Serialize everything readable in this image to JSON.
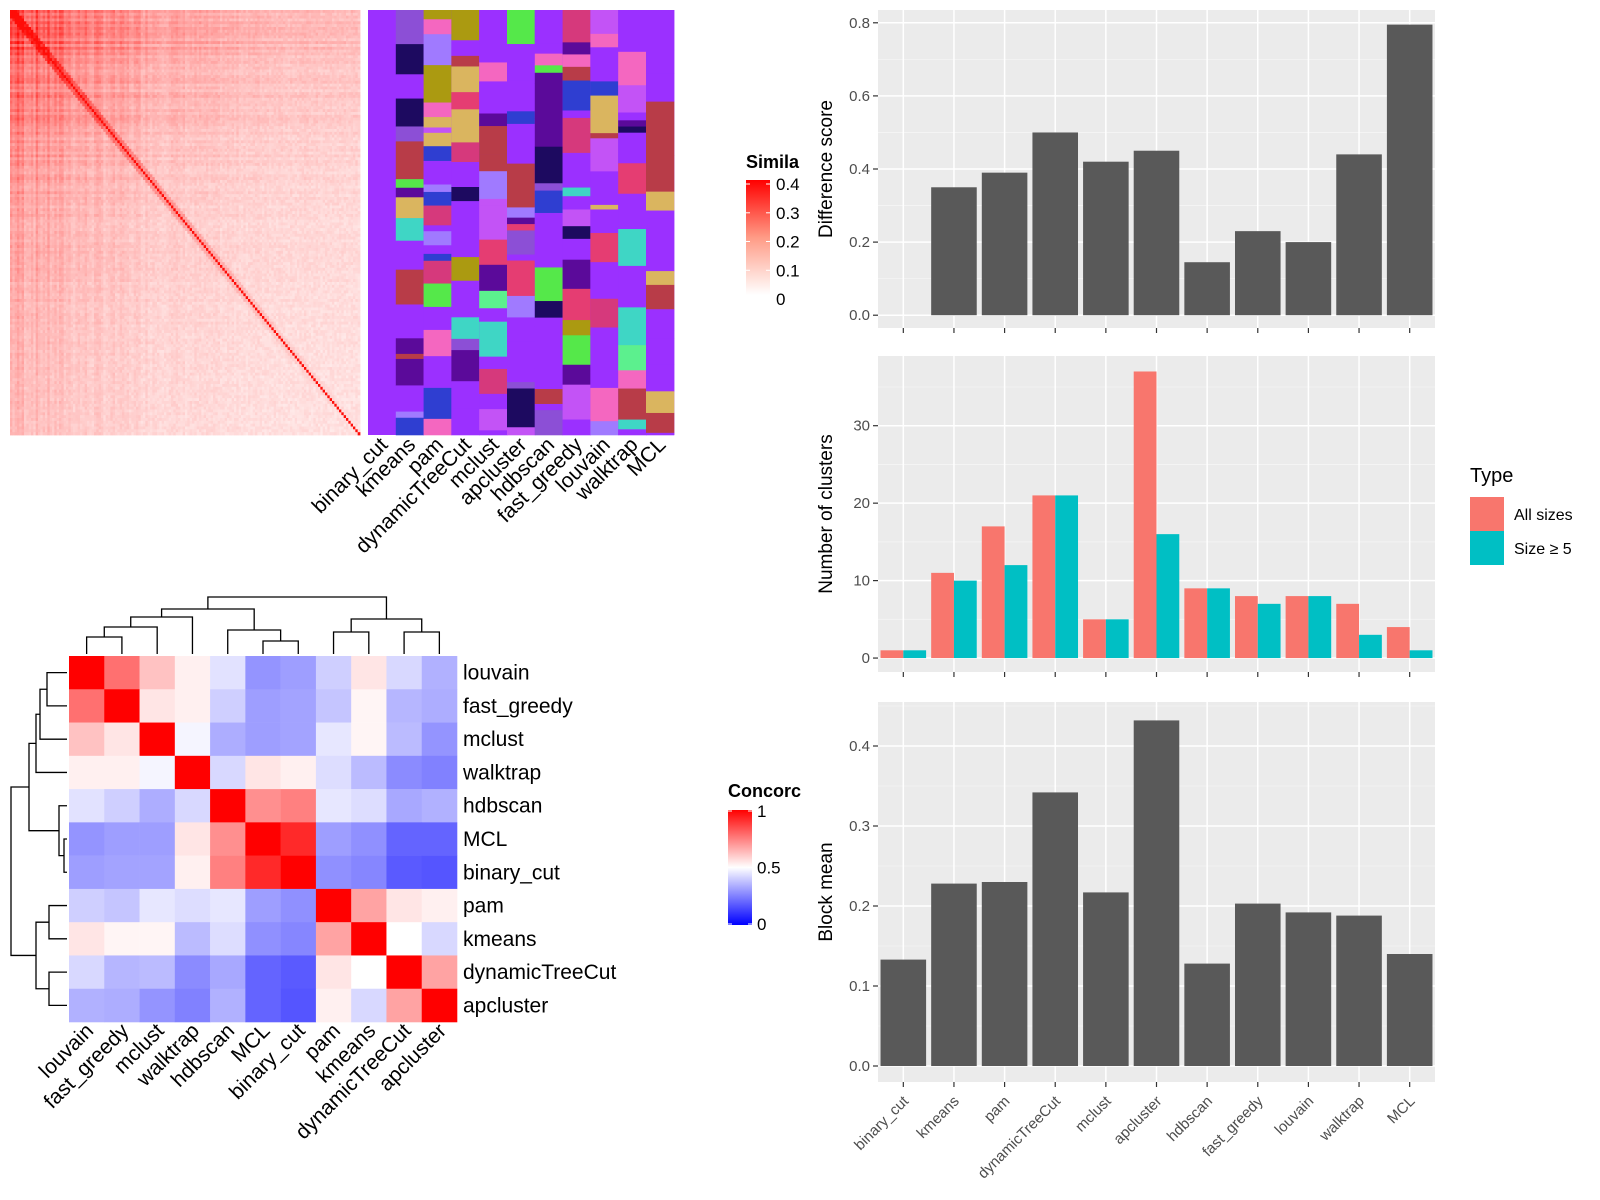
{
  "methods": [
    "binary_cut",
    "kmeans",
    "pam",
    "dynamicTreeCut",
    "mclust",
    "apcluster",
    "hdbscan",
    "fast_greedy",
    "louvain",
    "walktrap",
    "MCL"
  ],
  "colors": {
    "panel_bg": "#ebebeb",
    "bar_gray": "#595959",
    "all_sizes": "#f8766d",
    "size_ge5": "#00bfc4",
    "heat_red": "#ff0000",
    "heat_blue": "#0000ff",
    "partition_purple": "#9b30ff",
    "partition_palette": [
      "#9b30ff",
      "#dab55f",
      "#5cf08e",
      "#b83c48",
      "#e53d72",
      "#5b0a9a",
      "#c353f6",
      "#3fd6c5",
      "#2f3ed1",
      "#f467c0",
      "#ab9a11",
      "#1d0a60",
      "#a07aff",
      "#55e84a",
      "#d6397c",
      "#8c4fd6"
    ]
  },
  "chart_data": [
    {
      "type": "heatmap",
      "name": "similarity",
      "legend_title": "Similarity",
      "legend_title_visible": "Simila",
      "legend_ticks": [
        "0",
        "0.1",
        "0.2",
        "0.3",
        "0.4"
      ],
      "range": [
        0,
        0.4
      ],
      "x_labels": [
        "binary_cut",
        "kmeans",
        "pam",
        "dynamicTreeCut",
        "mclust",
        "apcluster",
        "hdbscan",
        "fast_greedy",
        "louvain",
        "walktrap",
        "MCL"
      ]
    },
    {
      "type": "heatmap",
      "name": "concordance",
      "legend_title": "Concordance",
      "legend_title_visible": "Concorc",
      "legend_ticks": [
        "0",
        "0.5",
        "1"
      ],
      "range": [
        0,
        1
      ],
      "row_labels": [
        "louvain",
        "fast_greedy",
        "mclust",
        "walktrap",
        "hdbscan",
        "MCL",
        "binary_cut",
        "pam",
        "kmeans",
        "dynamicTreeCut",
        "apcluster"
      ],
      "col_labels": [
        "louvain",
        "fast_greedy",
        "mclust",
        "walktrap",
        "hdbscan",
        "MCL",
        "binary_cut",
        "pam",
        "kmeans",
        "dynamicTreeCut",
        "apcluster"
      ],
      "values": [
        [
          1.0,
          0.78,
          0.62,
          0.53,
          0.44,
          0.28,
          0.3,
          0.4,
          0.55,
          0.42,
          0.34
        ],
        [
          0.78,
          1.0,
          0.55,
          0.53,
          0.4,
          0.3,
          0.31,
          0.38,
          0.52,
          0.35,
          0.33
        ],
        [
          0.62,
          0.55,
          1.0,
          0.48,
          0.33,
          0.3,
          0.31,
          0.45,
          0.52,
          0.36,
          0.28
        ],
        [
          0.53,
          0.53,
          0.48,
          1.0,
          0.42,
          0.55,
          0.53,
          0.43,
          0.36,
          0.26,
          0.24
        ],
        [
          0.44,
          0.4,
          0.33,
          0.42,
          1.0,
          0.72,
          0.75,
          0.45,
          0.43,
          0.32,
          0.34
        ],
        [
          0.28,
          0.3,
          0.3,
          0.55,
          0.72,
          1.0,
          0.92,
          0.3,
          0.27,
          0.18,
          0.18
        ],
        [
          0.3,
          0.31,
          0.31,
          0.53,
          0.75,
          0.92,
          1.0,
          0.27,
          0.25,
          0.16,
          0.15
        ],
        [
          0.4,
          0.38,
          0.45,
          0.43,
          0.45,
          0.3,
          0.27,
          1.0,
          0.68,
          0.55,
          0.53
        ],
        [
          0.55,
          0.52,
          0.52,
          0.36,
          0.43,
          0.27,
          0.25,
          0.68,
          1.0,
          0.5,
          0.42
        ],
        [
          0.42,
          0.35,
          0.36,
          0.26,
          0.32,
          0.18,
          0.16,
          0.55,
          0.5,
          1.0,
          0.68
        ],
        [
          0.34,
          0.33,
          0.28,
          0.24,
          0.34,
          0.18,
          0.15,
          0.53,
          0.42,
          0.68,
          1.0
        ]
      ]
    },
    {
      "type": "bar",
      "name": "difference",
      "categories": [
        "binary_cut",
        "kmeans",
        "pam",
        "dynamicTreeCut",
        "mclust",
        "apcluster",
        "hdbscan",
        "fast_greedy",
        "louvain",
        "walktrap",
        "MCL"
      ],
      "values": [
        0.0,
        0.35,
        0.39,
        0.5,
        0.42,
        0.45,
        0.145,
        0.23,
        0.2,
        0.44,
        0.795
      ],
      "ylabel": "Difference score",
      "ylim": [
        -0.035,
        0.835
      ],
      "yticks": [
        0.0,
        0.2,
        0.4,
        0.6,
        0.8
      ],
      "ytick_labels": [
        "0.0",
        "0.2",
        "0.4",
        "0.6",
        "0.8"
      ],
      "grid": true
    },
    {
      "type": "bar",
      "name": "clusters",
      "categories": [
        "binary_cut",
        "kmeans",
        "pam",
        "dynamicTreeCut",
        "mclust",
        "apcluster",
        "hdbscan",
        "fast_greedy",
        "louvain",
        "walktrap",
        "MCL"
      ],
      "series": [
        {
          "name": "All sizes",
          "values": [
            1,
            11,
            17,
            21,
            5,
            37,
            9,
            8,
            8,
            7,
            4
          ]
        },
        {
          "name": "Size ≥ 5",
          "values": [
            1,
            10,
            12,
            21,
            5,
            16,
            9,
            7,
            8,
            3,
            1
          ]
        }
      ],
      "ylabel": "Number of clusters",
      "ylim": [
        -1.8,
        39
      ],
      "yticks": [
        0,
        10,
        20,
        30
      ],
      "ytick_labels": [
        "0",
        "10",
        "20",
        "30"
      ],
      "legend_title": "Type",
      "legend_position": "right",
      "grid": true
    },
    {
      "type": "bar",
      "name": "blockmean",
      "categories": [
        "binary_cut",
        "kmeans",
        "pam",
        "dynamicTreeCut",
        "mclust",
        "apcluster",
        "hdbscan",
        "fast_greedy",
        "louvain",
        "walktrap",
        "MCL"
      ],
      "values": [
        0.133,
        0.228,
        0.23,
        0.342,
        0.217,
        0.432,
        0.128,
        0.203,
        0.192,
        0.188,
        0.14
      ],
      "ylabel": "Block mean",
      "ylim": [
        -0.02,
        0.455
      ],
      "yticks": [
        0.0,
        0.1,
        0.2,
        0.3,
        0.4
      ],
      "ytick_labels": [
        "0.0",
        "0.1",
        "0.2",
        "0.3",
        "0.4"
      ],
      "grid": true
    }
  ]
}
